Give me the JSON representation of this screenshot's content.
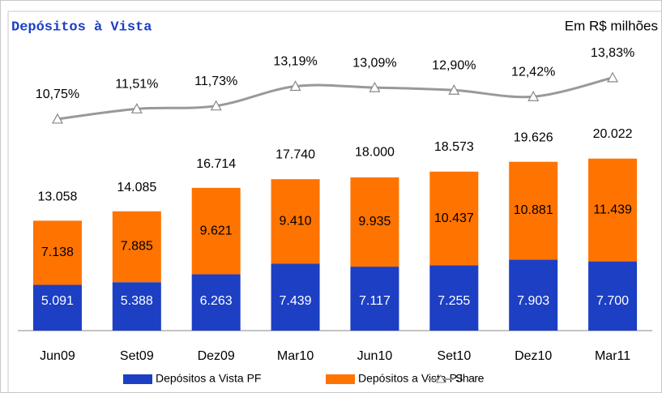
{
  "chart_data": {
    "type": "bar",
    "stacked": true,
    "title": "Depósitos à Vista",
    "subtitle": "Em R$ milhões",
    "categories": [
      "Jun09",
      "Set09",
      "Dez09",
      "Mar10",
      "Jun10",
      "Set10",
      "Dez10",
      "Mar11"
    ],
    "series": [
      {
        "name": "Depósitos a Vista PF",
        "color": "#1c3fc4",
        "values": [
          5091,
          5388,
          6263,
          7439,
          7117,
          7255,
          7903,
          7700
        ],
        "value_labels": [
          "5.091",
          "5.388",
          "6.263",
          "7.439",
          "7.117",
          "7.255",
          "7.903",
          "7.700"
        ]
      },
      {
        "name": "Depósitos a Vista PJ",
        "color": "#ff7300",
        "values": [
          7138,
          7885,
          9621,
          9410,
          9935,
          10437,
          10881,
          11439
        ],
        "value_labels": [
          "7.138",
          "7.885",
          "9.621",
          "9.410",
          "9.935",
          "10.437",
          "10.881",
          "11.439"
        ]
      },
      {
        "name": "Share",
        "type": "line",
        "axis": "y2",
        "color": "#999999",
        "values": [
          10.75,
          11.51,
          11.73,
          13.19,
          13.09,
          12.9,
          12.42,
          13.83
        ],
        "value_labels": [
          "10,75%",
          "11,51%",
          "11,73%",
          "13,19%",
          "13,09%",
          "12,90%",
          "12,42%",
          "13,83%"
        ]
      }
    ],
    "totals": {
      "values": [
        13058,
        14085,
        16714,
        17740,
        18000,
        18573,
        19626,
        20022
      ],
      "value_labels": [
        "13.058",
        "14.085",
        "16.714",
        "17.740",
        "18.000",
        "18.573",
        "19.626",
        "20.022"
      ]
    },
    "ylim": [
      0,
      33180
    ],
    "y2lim": [
      -5,
      17.2
    ],
    "grid": false,
    "legend": "bottom"
  }
}
